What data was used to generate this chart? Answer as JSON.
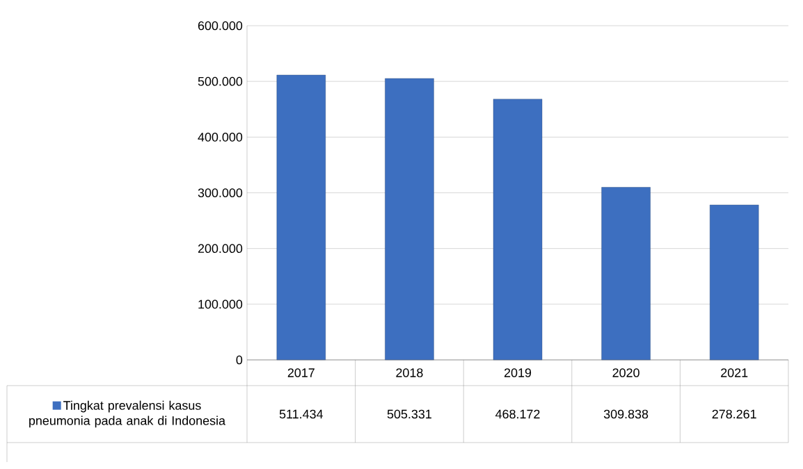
{
  "chart_data": {
    "type": "bar",
    "categories": [
      "2017",
      "2018",
      "2019",
      "2020",
      "2021"
    ],
    "series": [
      {
        "name": "Tingkat prevalensi kasus pneumonia pada anak di Indonesia",
        "color": "#3d6fc0",
        "values": [
          511434,
          505331,
          468172,
          309838,
          278261
        ],
        "value_labels": [
          "511.434",
          "505.331",
          "468.172",
          "309.838",
          "278.261"
        ]
      }
    ],
    "ylim": [
      0,
      600000
    ],
    "yticks": [
      0,
      {
        "value": 100000,
        "label": "100.000"
      },
      {
        "value": 200000,
        "label": "200.000"
      },
      {
        "value": 300000,
        "label": "300.000"
      },
      {
        "value": 400000,
        "label": "400.000"
      },
      {
        "value": 500000,
        "label": "500.000"
      },
      {
        "value": 600000,
        "label": "600.000"
      }
    ],
    "grid": "y",
    "legend": "bottom"
  }
}
